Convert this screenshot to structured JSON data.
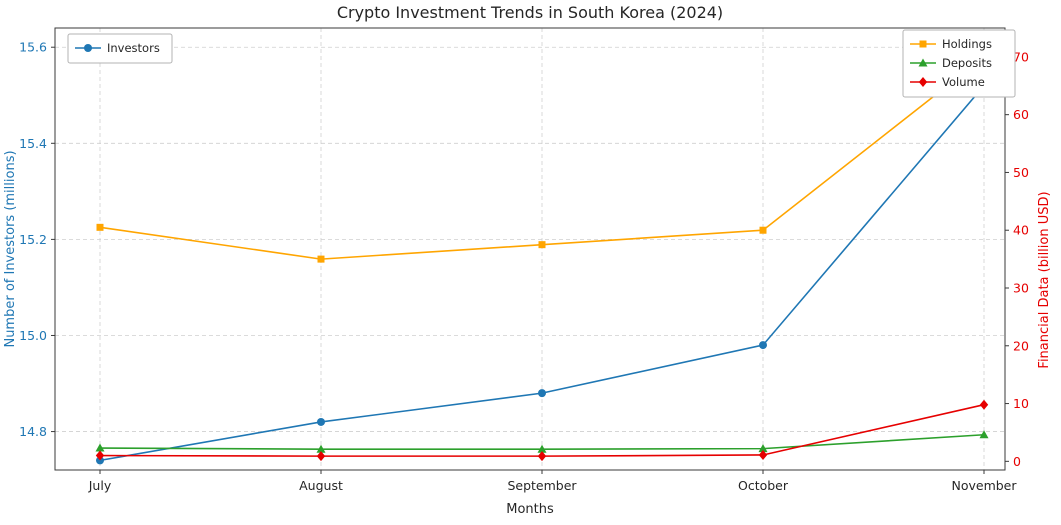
{
  "chart_data": {
    "type": "line",
    "title": "Crypto Investment Trends in South Korea (2024)",
    "xlabel": "Months",
    "categories": [
      "July",
      "August",
      "September",
      "October",
      "November"
    ],
    "grid": true,
    "left_axis": {
      "label": "Number of Investors (millions)",
      "color": "#1f77b4",
      "ticks": [
        14.8,
        15.0,
        15.2,
        15.4,
        15.6
      ],
      "range": [
        14.72,
        15.64
      ]
    },
    "right_axis": {
      "label": "Financial Data (billion USD)",
      "color": "#e60000",
      "ticks": [
        0,
        10,
        20,
        30,
        40,
        50,
        60,
        70
      ],
      "range": [
        -1.5,
        75
      ]
    },
    "series": [
      {
        "name": "Investors",
        "axis": "left",
        "color": "#1f77b4",
        "marker": "circle",
        "values": [
          14.74,
          14.82,
          14.88,
          14.98,
          15.52
        ]
      },
      {
        "name": "Holdings",
        "axis": "right",
        "color": "#ffa500",
        "marker": "square",
        "values": [
          40.5,
          35.0,
          37.5,
          40.0,
          70.0
        ]
      },
      {
        "name": "Deposits",
        "axis": "right",
        "color": "#2ca02c",
        "marker": "triangle",
        "values": [
          2.3,
          2.1,
          2.1,
          2.2,
          4.6
        ]
      },
      {
        "name": "Volume",
        "axis": "right",
        "color": "#e60000",
        "marker": "diamond",
        "values": [
          1.0,
          0.9,
          0.9,
          1.1,
          9.8
        ]
      }
    ],
    "legend_left": [
      "Investors"
    ],
    "legend_right": [
      "Holdings",
      "Deposits",
      "Volume"
    ]
  }
}
